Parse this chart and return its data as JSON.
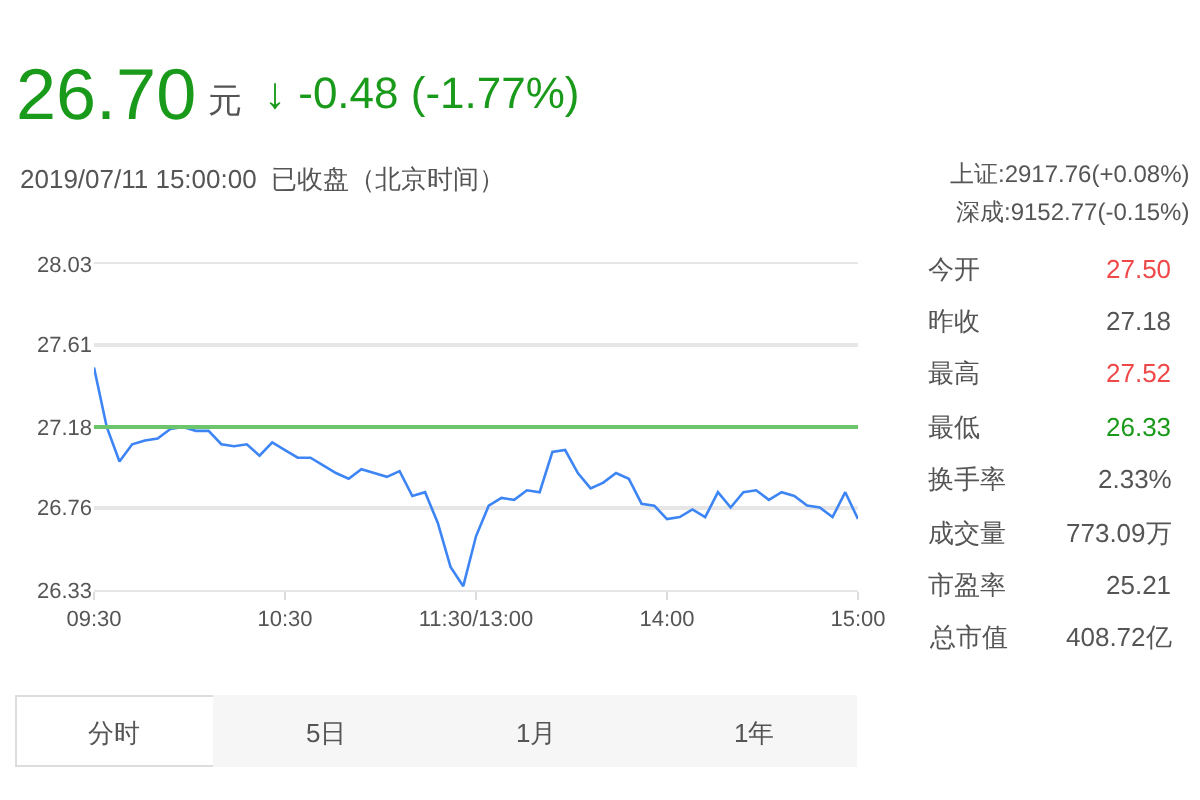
{
  "chart_data": {
    "type": "line",
    "title": "26.70",
    "subtitle": "2019/07/11 15:00:00  已收盘（北京时间）",
    "annotations": [
      "元",
      "↓ -0.48 (-1.77%)",
      "上证:2917.76(+0.08%)",
      "深成:9152.77(-0.15%)",
      "今开",
      "27.50",
      "昨收",
      "27.18",
      "最高",
      "27.52",
      "最低",
      "26.33",
      "换手率",
      "2.33%",
      "成交量",
      "773.09万",
      "市盈率",
      "25.21",
      "总市值",
      "408.72亿",
      "分时",
      "5日",
      "1月",
      "1年"
    ],
    "categories": [
      "09:30",
      null,
      null,
      null,
      null,
      null,
      null,
      null,
      null,
      null,
      null,
      null,
      null,
      null,
      null,
      "10:30",
      null,
      null,
      null,
      null,
      null,
      null,
      null,
      null,
      null,
      null,
      null,
      null,
      null,
      null,
      "11:30/13:00",
      null,
      null,
      null,
      null,
      null,
      null,
      null,
      null,
      null,
      null,
      null,
      null,
      null,
      null,
      "14:00",
      null,
      null,
      null,
      null,
      null,
      null,
      null,
      null,
      null,
      null,
      null,
      null,
      null,
      null,
      "15:00"
    ],
    "series": [
      {
        "color": "#3d85f5",
        "values": [
          27.49,
          27.18,
          27.0,
          27.09,
          27.11,
          27.12,
          27.17,
          27.18,
          27.16,
          27.16,
          27.09,
          27.08,
          27.09,
          27.03,
          27.1,
          27.06,
          27.02,
          27.02,
          26.98,
          26.94,
          26.91,
          26.96,
          26.94,
          26.92,
          26.95,
          26.82,
          26.84,
          26.68,
          26.45,
          26.35,
          26.61,
          26.77,
          26.81,
          26.8,
          26.85,
          26.84,
          27.05,
          27.06,
          26.94,
          26.86,
          26.89,
          26.94,
          26.91,
          26.78,
          26.77,
          26.7,
          26.71,
          26.75,
          26.71,
          26.84,
          26.76,
          26.84,
          26.85,
          26.8,
          26.84,
          26.82,
          26.77,
          26.76,
          26.71,
          26.84,
          26.7
        ]
      }
    ],
    "ylim": [
      26.33,
      28.03
    ],
    "yticks": [
      26.33,
      26.76,
      27.18,
      27.61,
      28.03
    ],
    "ref_lines": [
      {
        "axis": "y",
        "value": 27.18,
        "color": "#6cc46c"
      }
    ],
    "grid": "y",
    "marker": "none",
    "line_style": "solid"
  }
}
